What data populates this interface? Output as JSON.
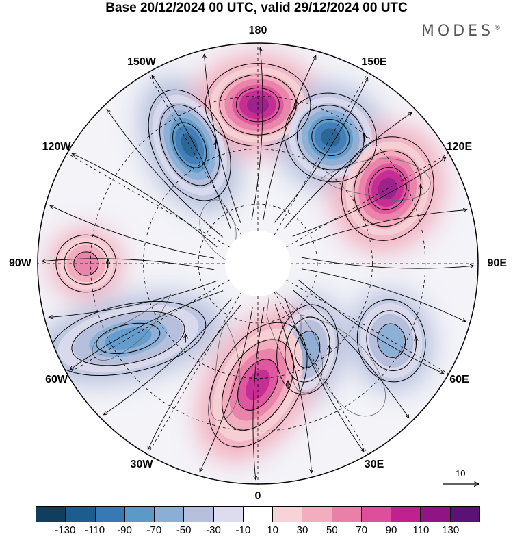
{
  "header": {
    "title": "Base 20/12/2024 00 UTC, valid 29/12/2024 00 UTC",
    "brand": "MODES",
    "brand_mark": "®"
  },
  "map": {
    "projection": "north polar stereographic",
    "longitude_labels": [
      "180",
      "150E",
      "120E",
      "90E",
      "60E",
      "30E",
      "0",
      "30W",
      "60W",
      "90W",
      "120W",
      "150W"
    ],
    "anomaly_centres": [
      {
        "sign": "negative",
        "near": "150W",
        "strength": -110
      },
      {
        "sign": "positive",
        "near": "180",
        "strength": 110
      },
      {
        "sign": "negative",
        "near": "150E",
        "strength": -110
      },
      {
        "sign": "positive",
        "near": "120E",
        "strength": 110
      },
      {
        "sign": "negative",
        "near": "60E",
        "strength": -50
      },
      {
        "sign": "negative",
        "near": "30E",
        "strength": -50
      },
      {
        "sign": "positive",
        "near": "0",
        "strength": 90
      },
      {
        "sign": "negative",
        "near": "60W",
        "strength": -70
      },
      {
        "sign": "positive",
        "near": "90W",
        "strength": 50
      }
    ]
  },
  "wind_scale": {
    "label": "10"
  },
  "colorbar": {
    "colors": [
      "#123e5e",
      "#1c5d8e",
      "#3679b5",
      "#5b99c9",
      "#8aaed6",
      "#b6c0dd",
      "#dcdcee",
      "#ffffff",
      "#f6d3d7",
      "#f2adbe",
      "#ea7fa8",
      "#dd4f9b",
      "#c0218f",
      "#911485",
      "#5a1276"
    ],
    "tick_labels": [
      "-130",
      "-110",
      "-90",
      "-70",
      "-50",
      "-30",
      "-10",
      "10",
      "30",
      "50",
      "70",
      "90",
      "110",
      "130"
    ]
  }
}
